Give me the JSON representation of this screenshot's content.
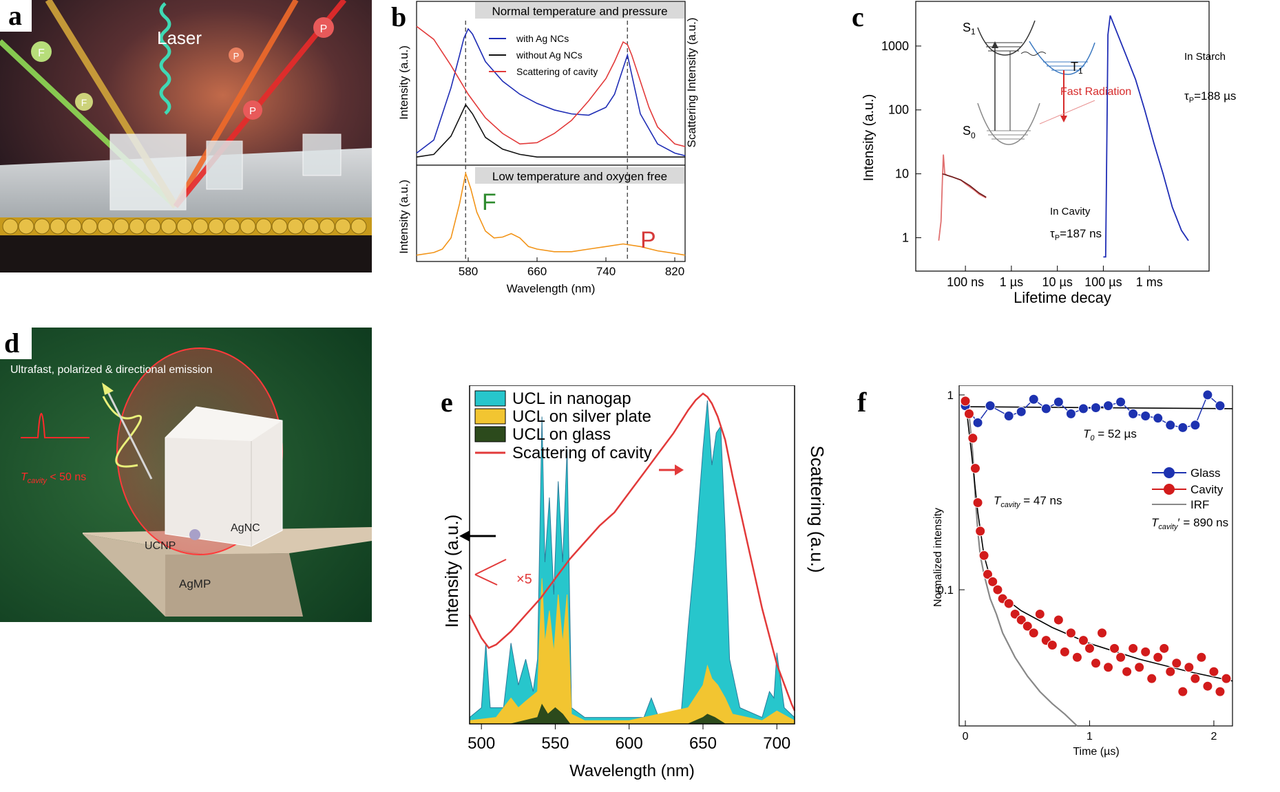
{
  "panel_labels": {
    "a": "a",
    "b": "b",
    "c": "c",
    "d": "d",
    "e": "e",
    "f": "f"
  },
  "colors": {
    "blue": "#1f2db5",
    "black": "#111111",
    "red": "#e23a3a",
    "orange": "#f29418",
    "cyan": "#27c6cc",
    "yellow": "#f2c531",
    "darkgreen": "#2c4a1c",
    "navy": "#1d32b0",
    "crimson": "#d21b1b",
    "gray": "#888888"
  },
  "panel_a": {
    "laser": "Laser",
    "p_badge": "P",
    "f_badge": "F"
  },
  "panel_d": {
    "headline": "Ultrafast, polarized & directional emission",
    "tcavity": "T",
    "tcavity_sub": "cavity",
    "tcavity_val": " < 50 ns",
    "agnc": "AgNC",
    "ucnp": "UCNP",
    "agmp": "AgMP"
  },
  "chart_data": [
    {
      "panel": "b",
      "type": "line",
      "top_banner": "Normal temperature and pressure",
      "bottom_banner": "Low temperature and oxygen free",
      "xlabel": "Wavelength (nm)",
      "ylabel_top": "Intensity (a.u.)",
      "ylabel_bottom": "Intensity (a.u.)",
      "ylabel_right": "Scattering Intensity (a.u.)",
      "x_ticks": [
        580,
        660,
        740,
        820
      ],
      "xlim": [
        520,
        832
      ],
      "dashed_lines_x": [
        577,
        765
      ],
      "annot_F": "F",
      "annot_P": "P",
      "series_top": [
        {
          "name": "with Ag NCs",
          "color": "#1f2db5",
          "x": [
            520,
            540,
            560,
            570,
            575,
            580,
            585,
            600,
            620,
            640,
            660,
            680,
            700,
            720,
            740,
            750,
            760,
            765,
            770,
            780,
            800,
            820,
            832
          ],
          "y": [
            0.05,
            0.15,
            0.55,
            0.8,
            0.93,
            1.0,
            0.96,
            0.75,
            0.6,
            0.5,
            0.43,
            0.38,
            0.35,
            0.34,
            0.4,
            0.5,
            0.7,
            0.8,
            0.65,
            0.35,
            0.12,
            0.05,
            0.03
          ]
        },
        {
          "name": "without Ag NCs",
          "color": "#111111",
          "x": [
            520,
            540,
            560,
            570,
            577,
            585,
            600,
            620,
            640,
            660,
            700,
            740,
            780,
            820,
            832
          ],
          "y": [
            0.02,
            0.04,
            0.18,
            0.32,
            0.42,
            0.35,
            0.17,
            0.08,
            0.04,
            0.02,
            0.02,
            0.02,
            0.02,
            0.02,
            0.02
          ]
        },
        {
          "name": "Scattering of cavity",
          "color": "#e23a3a",
          "x": [
            520,
            540,
            560,
            580,
            600,
            620,
            640,
            660,
            680,
            700,
            720,
            740,
            750,
            760,
            765,
            770,
            780,
            790,
            800,
            820,
            832
          ],
          "y": [
            1.02,
            0.92,
            0.72,
            0.5,
            0.32,
            0.2,
            0.12,
            0.13,
            0.2,
            0.3,
            0.45,
            0.62,
            0.75,
            0.9,
            0.88,
            0.8,
            0.6,
            0.4,
            0.25,
            0.12,
            0.1
          ]
        }
      ],
      "series_bottom": [
        {
          "name": "",
          "color": "#f29418",
          "x": [
            520,
            540,
            550,
            560,
            570,
            577,
            583,
            590,
            600,
            610,
            620,
            630,
            640,
            650,
            660,
            680,
            700,
            720,
            740,
            760,
            780,
            800,
            820,
            832
          ],
          "y": [
            0.05,
            0.08,
            0.12,
            0.25,
            0.65,
            1.0,
            0.82,
            0.55,
            0.33,
            0.25,
            0.26,
            0.3,
            0.25,
            0.15,
            0.12,
            0.09,
            0.09,
            0.12,
            0.15,
            0.18,
            0.15,
            0.1,
            0.07,
            0.05
          ]
        }
      ]
    },
    {
      "panel": "c",
      "type": "line",
      "xlabel": "Lifetime decay",
      "ylabel": "Intensity (a.u.)",
      "yscale": "log",
      "y_ticks": [
        1,
        10,
        100,
        1000
      ],
      "ylim": [
        0.3,
        5000
      ],
      "x_ticks": [
        "100 ns",
        "1 µs",
        "10 µs",
        "100 µs",
        "1 ms"
      ],
      "diagram_labels": {
        "s1": "S",
        "s1_sub": "1",
        "t1": "T",
        "t1_sub": "1",
        "s0": "S",
        "s0_sub": "0",
        "fast": "Fast Radiation"
      },
      "annot_cavity_head": "In Cavity",
      "annot_cavity_tau": "=187 ns",
      "annot_starch_head": "In Starch",
      "annot_starch_tau": "=188 µs",
      "tau_symbol": "τ",
      "tau_sub": "P",
      "series": [
        {
          "name": "In Cavity",
          "color": "#e07070",
          "x": [
            0.42,
            0.47,
            0.5,
            0.52,
            0.55,
            0.6,
            0.7,
            0.8,
            0.9,
            1.0,
            1.1,
            1.2,
            1.3,
            1.45
          ],
          "y": [
            0.9,
            1.8,
            8,
            20,
            10,
            9.5,
            9,
            8.5,
            8,
            7,
            6.2,
            5.5,
            4.8,
            4.2
          ]
        },
        {
          "name": "In Starch",
          "color": "#1f2db5",
          "x": [
            4.0,
            4.05,
            4.1,
            4.15,
            4.3,
            4.5,
            4.7,
            4.9,
            5.1,
            5.3,
            5.5,
            5.7,
            5.85
          ],
          "y": [
            0.5,
            0.5,
            1500,
            3000,
            1600,
            700,
            300,
            100,
            30,
            10,
            3,
            1.3,
            0.9
          ]
        }
      ]
    },
    {
      "panel": "e",
      "type": "area",
      "xlabel": "Wavelength (nm)",
      "ylabel": "Intensity (a.u.)",
      "ylabel_right": "Scattering (a.u.)",
      "x_ticks": [
        500,
        550,
        600,
        650,
        700
      ],
      "xlim": [
        492,
        712
      ],
      "annot_x5": "×5",
      "series": [
        {
          "name": "UCL in nanogap",
          "color": "#27c6cc",
          "x": [
            492,
            500,
            503,
            506,
            515,
            520,
            525,
            530,
            535,
            538,
            541,
            543,
            546,
            549,
            552,
            555,
            558,
            561,
            570,
            600,
            610,
            615,
            620,
            635,
            640,
            645,
            650,
            653,
            656,
            659,
            662,
            665,
            668,
            675,
            690,
            695,
            698,
            700,
            705,
            712
          ],
          "y": [
            0.02,
            0.05,
            0.25,
            0.05,
            0.05,
            0.25,
            0.12,
            0.2,
            0.1,
            0.2,
            0.95,
            0.5,
            0.7,
            0.4,
            0.75,
            0.5,
            0.85,
            0.05,
            0.02,
            0.02,
            0.02,
            0.08,
            0.02,
            0.02,
            0.3,
            0.55,
            0.85,
            1.0,
            0.8,
            0.9,
            0.92,
            0.6,
            0.2,
            0.05,
            0.02,
            0.1,
            0.08,
            0.22,
            0.05,
            0.02
          ]
        },
        {
          "name": "UCL on silver plate",
          "color": "#f2c531",
          "x": [
            492,
            510,
            520,
            525,
            530,
            538,
            541,
            543,
            546,
            549,
            552,
            555,
            558,
            561,
            570,
            600,
            640,
            650,
            653,
            656,
            660,
            665,
            670,
            690,
            700,
            712
          ],
          "y": [
            0.01,
            0.02,
            0.08,
            0.05,
            0.07,
            0.1,
            0.45,
            0.25,
            0.35,
            0.22,
            0.4,
            0.25,
            0.4,
            0.03,
            0.01,
            0.01,
            0.05,
            0.12,
            0.18,
            0.14,
            0.12,
            0.08,
            0.03,
            0.01,
            0.04,
            0.01
          ]
        },
        {
          "name": "UCL on glass",
          "color": "#2c4a1c",
          "x": [
            492,
            520,
            538,
            541,
            545,
            550,
            555,
            560,
            570,
            640,
            650,
            653,
            658,
            665,
            690,
            712
          ],
          "y": [
            0.0,
            0.0,
            0.02,
            0.06,
            0.03,
            0.05,
            0.03,
            0.0,
            0.0,
            0.0,
            0.02,
            0.03,
            0.02,
            0.0,
            0.0,
            0.0
          ]
        },
        {
          "name": "Scattering of cavity",
          "color": "#e23a3a",
          "x": [
            492,
            500,
            505,
            510,
            520,
            530,
            540,
            550,
            560,
            570,
            580,
            590,
            600,
            610,
            620,
            630,
            640,
            645,
            650,
            653,
            656,
            660,
            665,
            670,
            680,
            690,
            700,
            710,
            712
          ],
          "y": [
            0.33,
            0.26,
            0.23,
            0.24,
            0.28,
            0.33,
            0.38,
            0.44,
            0.5,
            0.55,
            0.6,
            0.64,
            0.7,
            0.76,
            0.82,
            0.88,
            0.95,
            0.98,
            1.0,
            0.99,
            0.97,
            0.93,
            0.86,
            0.75,
            0.55,
            0.35,
            0.18,
            0.06,
            0.04
          ]
        }
      ]
    },
    {
      "panel": "f",
      "type": "scatter",
      "xlabel": "Time (µs)",
      "ylabel": "Normalized intensity",
      "yscale": "log",
      "y_ticks": [
        0.1,
        1
      ],
      "ylim": [
        0.02,
        1.12
      ],
      "x_ticks": [
        0,
        1,
        2
      ],
      "xlim": [
        -0.05,
        2.15
      ],
      "annot_t0": "T",
      "annot_t0_sub": "0",
      "annot_t0_val": " = 52 µs",
      "annot_tcav": "T",
      "annot_tcav_sub": "cavity",
      "annot_tcav_val": " = 47 ns",
      "annot_tcav2": "T",
      "annot_tcav2_sub": "cavity",
      "annot_tcav2_val": "′ = 890 ns",
      "series": [
        {
          "name": "Glass",
          "color": "#1d32b0",
          "x": [
            0.0,
            0.1,
            0.2,
            0.35,
            0.45,
            0.55,
            0.65,
            0.75,
            0.85,
            0.95,
            1.05,
            1.15,
            1.25,
            1.35,
            1.45,
            1.55,
            1.65,
            1.75,
            1.85,
            1.95,
            2.05
          ],
          "y": [
            0.88,
            0.72,
            0.88,
            0.78,
            0.82,
            0.95,
            0.85,
            0.92,
            0.8,
            0.85,
            0.86,
            0.88,
            0.92,
            0.8,
            0.78,
            0.76,
            0.7,
            0.68,
            0.7,
            1.0,
            0.88
          ]
        },
        {
          "name": "Cavity",
          "color": "#d21b1b",
          "x": [
            0.0,
            0.03,
            0.06,
            0.08,
            0.1,
            0.12,
            0.15,
            0.18,
            0.22,
            0.26,
            0.3,
            0.35,
            0.4,
            0.45,
            0.5,
            0.55,
            0.6,
            0.65,
            0.7,
            0.75,
            0.8,
            0.85,
            0.9,
            0.95,
            1.0,
            1.05,
            1.1,
            1.15,
            1.2,
            1.25,
            1.3,
            1.35,
            1.4,
            1.45,
            1.5,
            1.55,
            1.6,
            1.65,
            1.7,
            1.75,
            1.8,
            1.85,
            1.9,
            1.95,
            2.0,
            2.05,
            2.1
          ],
          "y": [
            0.93,
            0.8,
            0.6,
            0.42,
            0.28,
            0.2,
            0.15,
            0.12,
            0.11,
            0.1,
            0.09,
            0.085,
            0.075,
            0.07,
            0.065,
            0.06,
            0.075,
            0.055,
            0.052,
            0.07,
            0.048,
            0.06,
            0.045,
            0.055,
            0.05,
            0.042,
            0.06,
            0.04,
            0.05,
            0.045,
            0.038,
            0.05,
            0.04,
            0.048,
            0.035,
            0.045,
            0.05,
            0.038,
            0.042,
            0.03,
            0.04,
            0.035,
            0.045,
            0.032,
            0.038,
            0.03,
            0.035
          ]
        },
        {
          "name": "IRF",
          "color": "#888888",
          "x": [
            0.0,
            0.03,
            0.06,
            0.08,
            0.1,
            0.12,
            0.15,
            0.2,
            0.25,
            0.3,
            0.4,
            0.5,
            0.6,
            0.7,
            0.8,
            0.9
          ],
          "y": [
            0.9,
            0.8,
            0.5,
            0.3,
            0.2,
            0.15,
            0.12,
            0.09,
            0.075,
            0.06,
            0.045,
            0.036,
            0.03,
            0.026,
            0.023,
            0.02
          ]
        }
      ]
    }
  ]
}
